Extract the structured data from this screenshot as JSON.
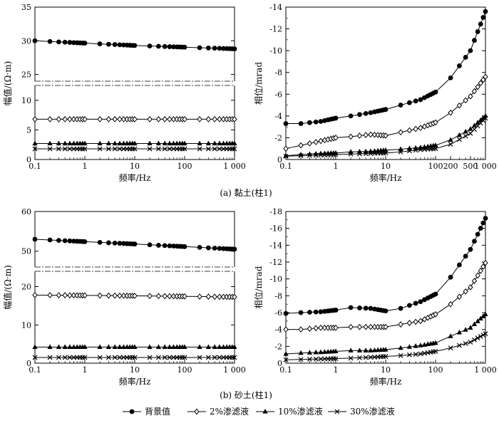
{
  "chart_data": [
    {
      "type": "line",
      "panel": "a",
      "quantity": "amplitude",
      "ylabel": "幅值/(Ω·m)",
      "xlabel": "频率/Hz",
      "xscale": "log",
      "xlim": [
        0.1,
        1000
      ],
      "x_ticks": [
        {
          "v": 0.1,
          "label": "0.1"
        },
        {
          "v": 1,
          "label": "1"
        },
        {
          "v": 10,
          "label": "10"
        },
        {
          "v": 100,
          "label": "100"
        },
        {
          "v": 1000,
          "label": "1 000"
        }
      ],
      "y_axis_broken": true,
      "ylim_lower": [
        0,
        12.5
      ],
      "ylim_upper": [
        24,
        35
      ],
      "y_ticks_lower": [
        {
          "v": 0,
          "label": "0"
        },
        {
          "v": 5,
          "label": "5"
        },
        {
          "v": 10,
          "label": "10"
        }
      ],
      "y_ticks_upper": [
        {
          "v": 25,
          "label": "25"
        },
        {
          "v": 30,
          "label": "30"
        },
        {
          "v": 35,
          "label": "35"
        }
      ],
      "series": [
        {
          "name": "背景值",
          "marker": "circle",
          "values": [
            30.0,
            29.3,
            28.8
          ]
        },
        {
          "name": "2%渗滤液",
          "marker": "diamond",
          "values": [
            6.8,
            6.8,
            6.8
          ]
        },
        {
          "name": "10%渗滤液",
          "marker": "triangle",
          "values": [
            2.7,
            2.7,
            2.7
          ]
        },
        {
          "name": "30%渗滤液",
          "marker": "x",
          "values": [
            1.8,
            1.8,
            1.8
          ]
        }
      ],
      "x": [
        0.1,
        10,
        1000
      ],
      "caption": "(a)  黏土(柱1)"
    },
    {
      "type": "line",
      "panel": "a",
      "quantity": "phase",
      "ylabel": "相位/mrad",
      "xlabel": "频率/Hz",
      "xscale": "log",
      "xlim": [
        0.1,
        1000
      ],
      "ylim": [
        0,
        -14
      ],
      "y_inverted": true,
      "x_ticks": [
        {
          "v": 0.1,
          "label": "0.1"
        },
        {
          "v": 1,
          "label": "1"
        },
        {
          "v": 10,
          "label": "10"
        },
        {
          "v": 100,
          "label": "100"
        },
        {
          "v": 200,
          "label": "200"
        },
        {
          "v": 500,
          "label": "500"
        },
        {
          "v": 1000,
          "label": "1 000"
        }
      ],
      "y_ticks": [
        {
          "v": 0,
          "label": "0"
        },
        {
          "v": -2,
          "label": "-2"
        },
        {
          "v": -4,
          "label": "-4"
        },
        {
          "v": -6,
          "label": "-6"
        },
        {
          "v": -8,
          "label": "-8"
        },
        {
          "v": -10,
          "label": "-10"
        },
        {
          "v": -12,
          "label": "-12"
        },
        {
          "v": -14,
          "label": "-14"
        }
      ],
      "x": [
        0.1,
        0.2,
        0.5,
        1,
        2,
        5,
        10,
        20,
        50,
        100,
        200,
        500,
        1000
      ],
      "series": [
        {
          "name": "背景值",
          "marker": "circle",
          "values": [
            -3.3,
            -3.3,
            -3.5,
            -3.8,
            -4.0,
            -4.3,
            -4.6,
            -5.0,
            -5.5,
            -6.2,
            -7.5,
            -10.0,
            -13.6
          ]
        },
        {
          "name": "2%渗滤液",
          "marker": "diamond",
          "values": [
            -1.0,
            -1.3,
            -1.7,
            -2.0,
            -2.1,
            -2.3,
            -2.2,
            -2.5,
            -2.9,
            -3.4,
            -4.3,
            -5.8,
            -7.6
          ]
        },
        {
          "name": "10%渗滤液",
          "marker": "triangle",
          "values": [
            -0.35,
            -0.45,
            -0.55,
            -0.6,
            -0.7,
            -0.75,
            -0.85,
            -0.95,
            -1.1,
            -1.3,
            -1.8,
            -2.8,
            -4.0
          ]
        },
        {
          "name": "30%渗滤液",
          "marker": "x",
          "values": [
            -0.3,
            -0.35,
            -0.4,
            -0.45,
            -0.5,
            -0.55,
            -0.6,
            -0.7,
            -0.9,
            -1.0,
            -1.4,
            -2.4,
            -3.8
          ]
        }
      ]
    },
    {
      "type": "line",
      "panel": "b",
      "quantity": "amplitude",
      "ylabel": "幅值/(Ω·m)",
      "xlabel": "频率/Hz",
      "xscale": "log",
      "xlim": [
        0.1,
        1000
      ],
      "x_ticks": [
        {
          "v": 0.1,
          "label": "0.1"
        },
        {
          "v": 1,
          "label": "1"
        },
        {
          "v": 10,
          "label": "10"
        },
        {
          "v": 100,
          "label": "100"
        },
        {
          "v": 1000,
          "label": "1 000"
        }
      ],
      "y_axis_broken": true,
      "ylim_lower": [
        0,
        24
      ],
      "ylim_upper": [
        46,
        60
      ],
      "y_ticks_lower": [
        {
          "v": 0,
          "label": "0"
        },
        {
          "v": 10,
          "label": "10"
        },
        {
          "v": 20,
          "label": "20"
        }
      ],
      "y_ticks_upper": [
        {
          "v": 50,
          "label": "50"
        },
        {
          "v": 60,
          "label": "60"
        }
      ],
      "series": [
        {
          "name": "背景值",
          "marker": "circle",
          "values": [
            53.0,
            51.8,
            50.5
          ]
        },
        {
          "name": "2%渗滤液",
          "marker": "diamond",
          "values": [
            17.8,
            17.6,
            17.3
          ]
        },
        {
          "name": "10%渗滤液",
          "marker": "triangle",
          "values": [
            4.2,
            4.2,
            4.2
          ]
        },
        {
          "name": "30%渗滤液",
          "marker": "x",
          "values": [
            1.5,
            1.5,
            1.5
          ]
        }
      ],
      "x": [
        0.1,
        10,
        1000
      ],
      "caption": "(b)  砂土(柱1)"
    },
    {
      "type": "line",
      "panel": "b",
      "quantity": "phase",
      "ylabel": "相位/mrad",
      "xlabel": "频率/Hz",
      "xscale": "log",
      "xlim": [
        0.1,
        1000
      ],
      "ylim": [
        0,
        -18
      ],
      "y_inverted": true,
      "x_ticks": [
        {
          "v": 0.1,
          "label": "0.1"
        },
        {
          "v": 1,
          "label": "1"
        },
        {
          "v": 10,
          "label": "10"
        },
        {
          "v": 100,
          "label": "100"
        },
        {
          "v": 1000,
          "label": "1 000"
        }
      ],
      "y_ticks": [
        {
          "v": 0,
          "label": "0"
        },
        {
          "v": -2,
          "label": "-2"
        },
        {
          "v": -4,
          "label": "-4"
        },
        {
          "v": -6,
          "label": "-6"
        },
        {
          "v": -8,
          "label": "-8"
        },
        {
          "v": -10,
          "label": "-10"
        },
        {
          "v": -12,
          "label": "-12"
        },
        {
          "v": -14,
          "label": "-14"
        },
        {
          "v": -16,
          "label": "-16"
        },
        {
          "v": -18,
          "label": "-18"
        }
      ],
      "x": [
        0.1,
        0.2,
        0.5,
        1,
        2,
        5,
        10,
        20,
        50,
        100,
        200,
        500,
        1000
      ],
      "series": [
        {
          "name": "背景值",
          "marker": "circle",
          "values": [
            -5.9,
            -6.0,
            -6.1,
            -6.3,
            -6.6,
            -6.5,
            -6.2,
            -6.5,
            -7.3,
            -8.2,
            -10.2,
            -13.5,
            -17.2
          ]
        },
        {
          "name": "2%渗滤液",
          "marker": "diamond",
          "values": [
            -4.0,
            -4.0,
            -4.2,
            -4.2,
            -4.3,
            -4.3,
            -4.3,
            -4.6,
            -5.0,
            -5.8,
            -7.0,
            -9.0,
            -11.9
          ]
        },
        {
          "name": "10%渗滤液",
          "marker": "triangle",
          "values": [
            -1.1,
            -1.2,
            -1.3,
            -1.4,
            -1.5,
            -1.5,
            -1.6,
            -1.8,
            -2.1,
            -2.4,
            -3.2,
            -4.2,
            -5.8
          ]
        },
        {
          "name": "30%渗滤液",
          "marker": "x",
          "values": [
            -0.4,
            -0.45,
            -0.5,
            -0.55,
            -0.6,
            -0.7,
            -0.8,
            -0.9,
            -1.1,
            -1.4,
            -1.8,
            -2.5,
            -3.5
          ]
        }
      ]
    }
  ],
  "captions": {
    "a": "(a)  黏土(柱1)",
    "b": "(b)  砂土(柱1)"
  },
  "legend": [
    {
      "label": "背景值",
      "marker": "circle"
    },
    {
      "label": "2%渗滤液",
      "marker": "diamond"
    },
    {
      "label": "10%渗滤液",
      "marker": "triangle"
    },
    {
      "label": "30%渗滤液",
      "marker": "x"
    }
  ]
}
